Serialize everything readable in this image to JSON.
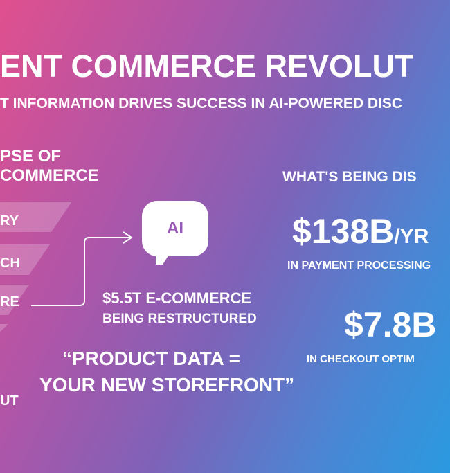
{
  "header": {
    "title": "ENT COMMERCE REVOLUT",
    "subtitle": "T INFORMATION DRIVES SUCCESS IN AI-POWERED DISC"
  },
  "left": {
    "heading_line1": "PSE OF",
    "heading_line2": "COMMERCE",
    "funnel": [
      {
        "label": "RY"
      },
      {
        "label": "CH"
      },
      {
        "label": "RE"
      },
      {
        "label": ""
      },
      {
        "label": "UT"
      }
    ]
  },
  "center": {
    "icon": "ai-chat-bubble-icon",
    "icon_text": "AI",
    "value": "$5.5T E-COMMERCE",
    "value_sub": "BEING RESTRUCTURED",
    "quote_line1": "“PRODUCT DATA =",
    "quote_line2": "YOUR NEW STOREFRONT”"
  },
  "right": {
    "heading": "WHAT'S BEING DIS",
    "stat1": "$138B",
    "stat1_unit": "/YR",
    "stat1_label": "IN PAYMENT PROCESSING",
    "stat2": "$7.8B",
    "stat2_label": "IN CHECKOUT OPTIM"
  }
}
